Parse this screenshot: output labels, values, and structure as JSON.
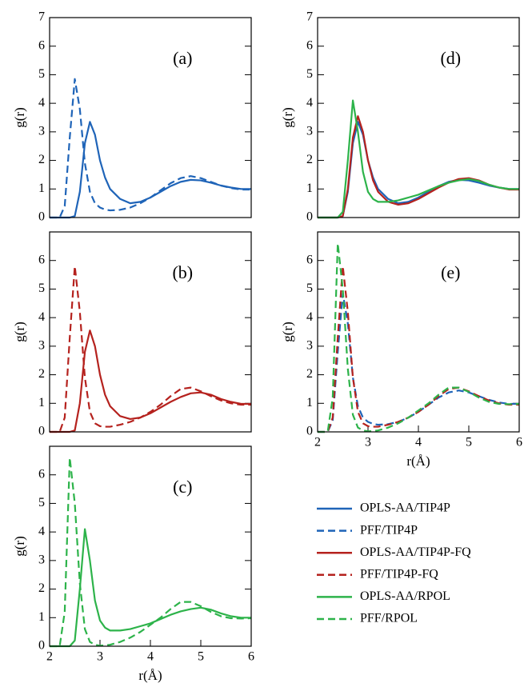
{
  "chart_data": [
    {
      "type": "line",
      "label": "(a)",
      "ylabel": "g(r)",
      "xlim": [
        2,
        6
      ],
      "ylim": [
        0,
        7
      ],
      "yticks": [
        0,
        1,
        2,
        3,
        4,
        5,
        6,
        7
      ],
      "x": [
        2.0,
        2.1,
        2.2,
        2.3,
        2.4,
        2.5,
        2.6,
        2.7,
        2.8,
        2.9,
        3.0,
        3.1,
        3.2,
        3.4,
        3.6,
        3.8,
        4.0,
        4.2,
        4.4,
        4.6,
        4.8,
        5.0,
        5.2,
        5.4,
        5.6,
        5.8,
        6.0
      ],
      "series": [
        {
          "name": "OPLS-AA/TIP4P",
          "color": "#1f64b8",
          "dashed": false,
          "values": [
            0,
            0,
            0,
            0,
            0,
            0.05,
            0.9,
            2.6,
            3.35,
            2.9,
            2.0,
            1.4,
            1.0,
            0.65,
            0.5,
            0.55,
            0.7,
            0.9,
            1.1,
            1.25,
            1.32,
            1.3,
            1.22,
            1.12,
            1.05,
            1.0,
            1.0
          ]
        },
        {
          "name": "PFF/TIP4P",
          "color": "#1f64b8",
          "dashed": true,
          "values": [
            0,
            0,
            0,
            0.4,
            2.8,
            4.85,
            3.8,
            1.9,
            0.9,
            0.5,
            0.35,
            0.28,
            0.25,
            0.27,
            0.35,
            0.5,
            0.7,
            0.95,
            1.2,
            1.38,
            1.45,
            1.38,
            1.25,
            1.12,
            1.03,
            0.98,
            0.98
          ]
        }
      ]
    },
    {
      "type": "line",
      "label": "(b)",
      "ylabel": "g(r)",
      "xlim": [
        2,
        6
      ],
      "ylim": [
        0,
        7
      ],
      "yticks": [
        0,
        1,
        2,
        3,
        4,
        5,
        6
      ],
      "x": [
        2.0,
        2.1,
        2.2,
        2.3,
        2.4,
        2.5,
        2.6,
        2.7,
        2.8,
        2.9,
        3.0,
        3.1,
        3.2,
        3.4,
        3.6,
        3.8,
        4.0,
        4.2,
        4.4,
        4.6,
        4.8,
        5.0,
        5.2,
        5.4,
        5.6,
        5.8,
        6.0
      ],
      "series": [
        {
          "name": "OPLS-AA/TIP4P-FQ",
          "color": "#b5221e",
          "dashed": false,
          "values": [
            0,
            0,
            0,
            0,
            0,
            0.05,
            1.0,
            2.8,
            3.55,
            3.0,
            2.0,
            1.3,
            0.9,
            0.55,
            0.45,
            0.5,
            0.65,
            0.85,
            1.05,
            1.22,
            1.35,
            1.38,
            1.3,
            1.15,
            1.05,
            0.98,
            0.98
          ]
        },
        {
          "name": "PFF/TIP4P-FQ",
          "color": "#b5221e",
          "dashed": true,
          "values": [
            0,
            0,
            0,
            0.5,
            3.3,
            5.8,
            4.2,
            1.9,
            0.7,
            0.3,
            0.2,
            0.18,
            0.18,
            0.25,
            0.35,
            0.5,
            0.7,
            0.95,
            1.25,
            1.5,
            1.55,
            1.42,
            1.25,
            1.1,
            1.0,
            0.95,
            0.95
          ]
        }
      ]
    },
    {
      "type": "line",
      "label": "(c)",
      "ylabel": "g(r)",
      "xlabel": "r(Å)",
      "xlim": [
        2,
        6
      ],
      "ylim": [
        0,
        7
      ],
      "yticks": [
        0,
        1,
        2,
        3,
        4,
        5,
        6
      ],
      "xticks": [
        2,
        3,
        4,
        5,
        6
      ],
      "x": [
        2.0,
        2.1,
        2.2,
        2.3,
        2.4,
        2.5,
        2.6,
        2.7,
        2.8,
        2.9,
        3.0,
        3.1,
        3.2,
        3.4,
        3.6,
        3.8,
        4.0,
        4.2,
        4.4,
        4.6,
        4.8,
        5.0,
        5.2,
        5.4,
        5.6,
        5.8,
        6.0
      ],
      "series": [
        {
          "name": "OPLS-AA/RPOL",
          "color": "#2db34a",
          "dashed": false,
          "values": [
            0,
            0,
            0,
            0,
            0,
            0.2,
            2.0,
            4.1,
            3.0,
            1.6,
            0.9,
            0.65,
            0.55,
            0.55,
            0.6,
            0.7,
            0.8,
            0.95,
            1.1,
            1.22,
            1.3,
            1.35,
            1.28,
            1.15,
            1.05,
            1.0,
            1.0
          ]
        },
        {
          "name": "PFF/RPOL",
          "color": "#2db34a",
          "dashed": true,
          "values": [
            0,
            0,
            0,
            1.2,
            6.6,
            5.0,
            2.2,
            0.6,
            0.15,
            0.05,
            0.02,
            0.03,
            0.05,
            0.15,
            0.3,
            0.5,
            0.75,
            1.0,
            1.3,
            1.55,
            1.55,
            1.4,
            1.2,
            1.05,
            0.98,
            0.97,
            0.98
          ]
        }
      ]
    },
    {
      "type": "line",
      "label": "(d)",
      "ylabel": "g(r)",
      "xlim": [
        2,
        6
      ],
      "ylim": [
        0,
        7
      ],
      "yticks": [
        0,
        1,
        2,
        3,
        4,
        5,
        6,
        7
      ],
      "x": [
        2.0,
        2.1,
        2.2,
        2.3,
        2.4,
        2.5,
        2.6,
        2.7,
        2.8,
        2.9,
        3.0,
        3.1,
        3.2,
        3.4,
        3.6,
        3.8,
        4.0,
        4.2,
        4.4,
        4.6,
        4.8,
        5.0,
        5.2,
        5.4,
        5.6,
        5.8,
        6.0
      ],
      "series": [
        {
          "color": "#1f64b8",
          "dashed": false,
          "values": [
            0,
            0,
            0,
            0,
            0,
            0.05,
            0.9,
            2.6,
            3.35,
            2.9,
            2.0,
            1.4,
            1.0,
            0.65,
            0.5,
            0.55,
            0.7,
            0.9,
            1.1,
            1.25,
            1.32,
            1.3,
            1.22,
            1.12,
            1.05,
            1.0,
            1.0
          ]
        },
        {
          "color": "#b5221e",
          "dashed": false,
          "values": [
            0,
            0,
            0,
            0,
            0,
            0.05,
            1.0,
            2.8,
            3.55,
            3.0,
            2.0,
            1.3,
            0.9,
            0.55,
            0.45,
            0.5,
            0.65,
            0.85,
            1.05,
            1.22,
            1.35,
            1.38,
            1.3,
            1.15,
            1.05,
            0.98,
            0.98
          ]
        },
        {
          "color": "#2db34a",
          "dashed": false,
          "values": [
            0,
            0,
            0,
            0,
            0,
            0.2,
            2.0,
            4.1,
            3.0,
            1.6,
            0.9,
            0.65,
            0.55,
            0.55,
            0.6,
            0.7,
            0.8,
            0.95,
            1.1,
            1.22,
            1.3,
            1.35,
            1.28,
            1.15,
            1.05,
            1.0,
            1.0
          ]
        }
      ]
    },
    {
      "type": "line",
      "label": "(e)",
      "ylabel": "g(r)",
      "xlabel": "r(Å)",
      "xlim": [
        2,
        6
      ],
      "ylim": [
        0,
        7
      ],
      "yticks": [
        0,
        1,
        2,
        3,
        4,
        5,
        6
      ],
      "xticks": [
        2,
        3,
        4,
        5,
        6
      ],
      "x": [
        2.0,
        2.1,
        2.2,
        2.3,
        2.4,
        2.5,
        2.6,
        2.7,
        2.8,
        2.9,
        3.0,
        3.1,
        3.2,
        3.4,
        3.6,
        3.8,
        4.0,
        4.2,
        4.4,
        4.6,
        4.8,
        5.0,
        5.2,
        5.4,
        5.6,
        5.8,
        6.0
      ],
      "series": [
        {
          "color": "#1f64b8",
          "dashed": true,
          "values": [
            0,
            0,
            0,
            0.4,
            2.8,
            4.85,
            3.8,
            1.9,
            0.9,
            0.5,
            0.35,
            0.28,
            0.25,
            0.27,
            0.35,
            0.5,
            0.7,
            0.95,
            1.2,
            1.38,
            1.45,
            1.38,
            1.25,
            1.12,
            1.03,
            0.98,
            0.98
          ]
        },
        {
          "color": "#b5221e",
          "dashed": true,
          "values": [
            0,
            0,
            0,
            0.5,
            3.3,
            5.8,
            4.2,
            1.9,
            0.7,
            0.3,
            0.2,
            0.18,
            0.18,
            0.25,
            0.35,
            0.5,
            0.7,
            0.95,
            1.25,
            1.5,
            1.55,
            1.42,
            1.25,
            1.1,
            1.0,
            0.95,
            0.95
          ]
        },
        {
          "color": "#2db34a",
          "dashed": true,
          "values": [
            0,
            0,
            0,
            1.2,
            6.6,
            5.0,
            2.2,
            0.6,
            0.15,
            0.05,
            0.02,
            0.03,
            0.05,
            0.15,
            0.3,
            0.5,
            0.75,
            1.0,
            1.3,
            1.55,
            1.55,
            1.4,
            1.2,
            1.05,
            0.98,
            0.97,
            0.98
          ]
        }
      ]
    }
  ]
}
